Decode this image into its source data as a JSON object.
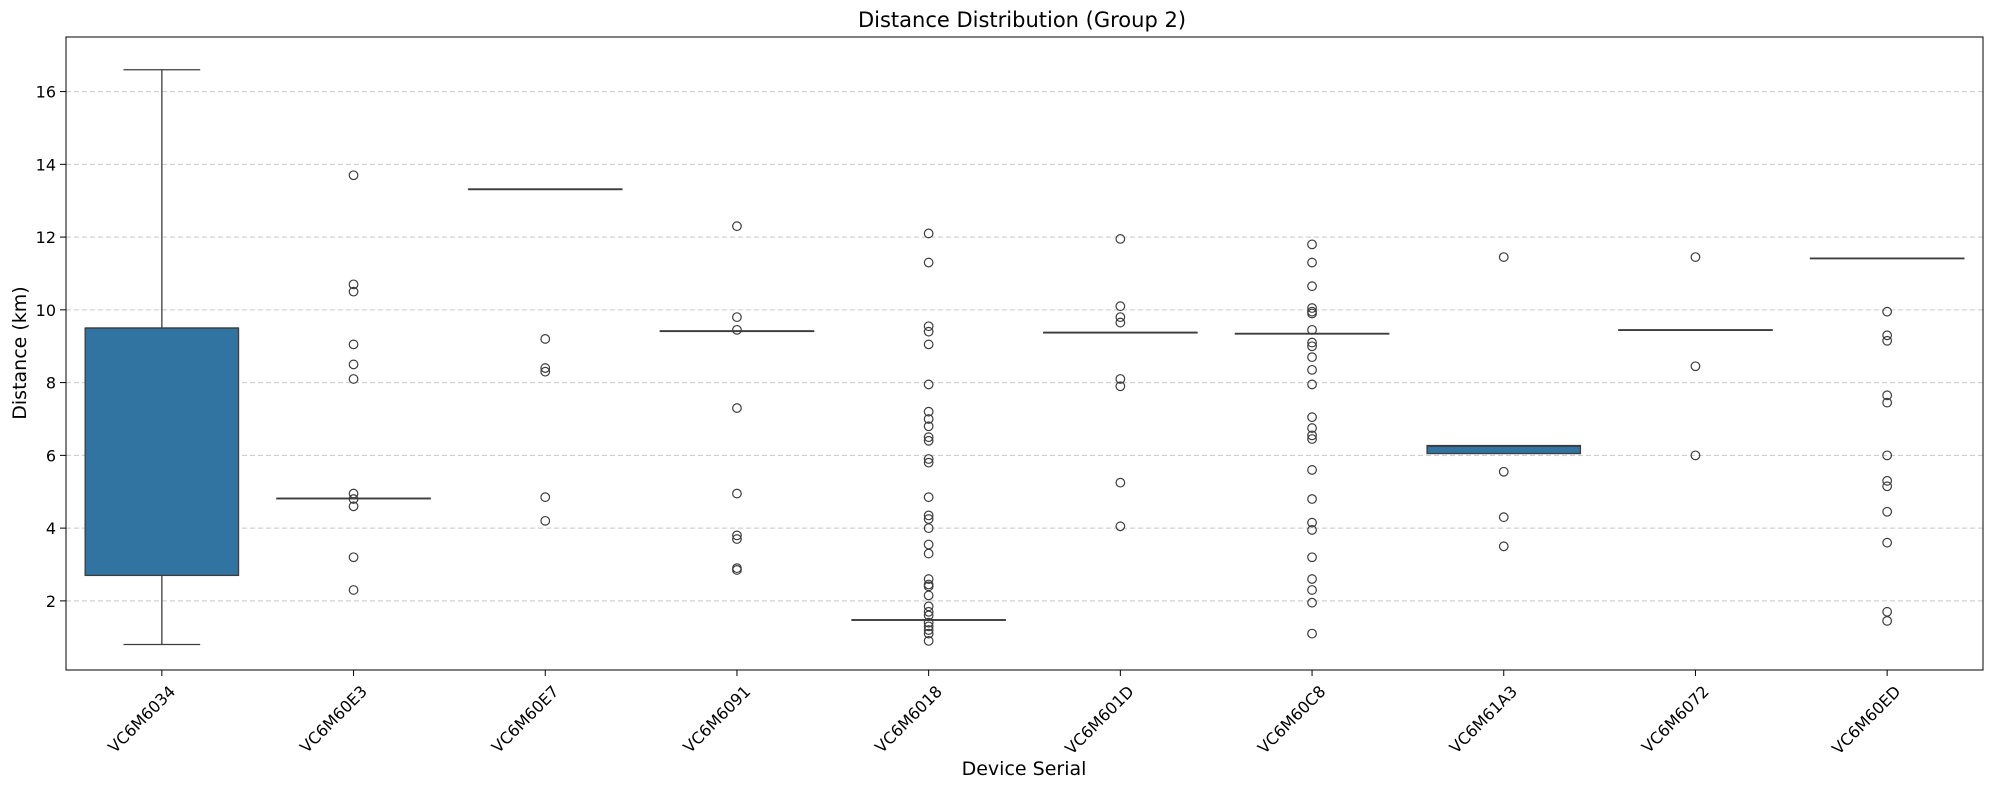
{
  "chart_data": {
    "type": "box",
    "title": "Distance Distribution (Group 2)",
    "xlabel": "Device Serial",
    "ylabel": "Distance (km)",
    "ylim": [
      0.1,
      17.5
    ],
    "yticks": [
      2,
      4,
      6,
      8,
      10,
      12,
      14,
      16
    ],
    "grid": "y-dashed",
    "colors": {
      "box_fill": "#3274a1",
      "line": "#3d3d3d",
      "grid": "#c8c8c8"
    },
    "categories": [
      "VC6M6034",
      "VC6M60E3",
      "VC6M60E7",
      "VC6M6091",
      "VC6M6018",
      "VC6M601D",
      "VC6M60C8",
      "VC6M61A3",
      "VC6M6072",
      "VC6M60ED"
    ],
    "boxes": [
      {
        "q1": 2.7,
        "median": 9.5,
        "q3": 9.5,
        "whislo": 0.8,
        "whishi": 16.6,
        "fliers": []
      },
      {
        "q1": 4.82,
        "median": 4.82,
        "q3": 4.82,
        "whislo": 4.82,
        "whishi": 4.82,
        "fliers": [
          13.7,
          10.7,
          10.5,
          9.05,
          8.5,
          8.1,
          4.95,
          4.8,
          4.6,
          3.2,
          2.3
        ]
      },
      {
        "q1": 13.32,
        "median": 13.32,
        "q3": 13.32,
        "whislo": 13.32,
        "whishi": 13.32,
        "fliers": [
          9.2,
          8.4,
          8.3,
          4.85,
          4.2
        ]
      },
      {
        "q1": 9.42,
        "median": 9.42,
        "q3": 9.42,
        "whislo": 9.42,
        "whishi": 9.42,
        "fliers": [
          12.3,
          9.8,
          9.45,
          7.3,
          4.95,
          3.8,
          3.7,
          2.9,
          2.85
        ]
      },
      {
        "q1": 1.48,
        "median": 1.48,
        "q3": 1.48,
        "whislo": 1.48,
        "whishi": 1.48,
        "fliers": [
          12.1,
          11.3,
          9.55,
          9.4,
          9.05,
          7.95,
          7.2,
          7.0,
          6.8,
          6.5,
          6.4,
          5.9,
          5.8,
          4.85,
          4.35,
          4.25,
          4.0,
          3.55,
          3.3,
          2.6,
          2.45,
          2.4,
          2.15,
          1.85,
          1.7,
          1.6,
          1.4,
          1.3,
          1.2,
          1.1,
          0.9
        ]
      },
      {
        "q1": 9.38,
        "median": 9.38,
        "q3": 9.38,
        "whislo": 9.38,
        "whishi": 9.38,
        "fliers": [
          11.95,
          10.1,
          9.8,
          9.65,
          8.1,
          7.9,
          5.25,
          4.05
        ]
      },
      {
        "q1": 9.35,
        "median": 9.35,
        "q3": 9.35,
        "whislo": 9.35,
        "whishi": 9.35,
        "fliers": [
          11.8,
          11.3,
          10.65,
          10.05,
          9.95,
          9.9,
          9.45,
          9.1,
          9.0,
          8.7,
          8.35,
          7.95,
          7.05,
          6.75,
          6.55,
          6.45,
          5.6,
          4.8,
          4.15,
          3.95,
          3.2,
          2.6,
          2.3,
          1.95,
          1.1
        ]
      },
      {
        "q1": 6.05,
        "median": 6.25,
        "q3": 6.27,
        "whislo": 6.05,
        "whishi": 6.27,
        "fliers": [
          11.45,
          5.55,
          4.3,
          3.5
        ]
      },
      {
        "q1": 9.45,
        "median": 9.45,
        "q3": 9.45,
        "whislo": 9.45,
        "whishi": 9.45,
        "fliers": [
          11.45,
          8.45,
          6.0
        ]
      },
      {
        "q1": 11.42,
        "median": 11.42,
        "q3": 11.42,
        "whislo": 11.42,
        "whishi": 11.42,
        "fliers": [
          9.95,
          9.3,
          9.15,
          7.65,
          7.45,
          6.0,
          5.3,
          5.15,
          4.45,
          3.6,
          1.7,
          1.45
        ]
      }
    ]
  }
}
